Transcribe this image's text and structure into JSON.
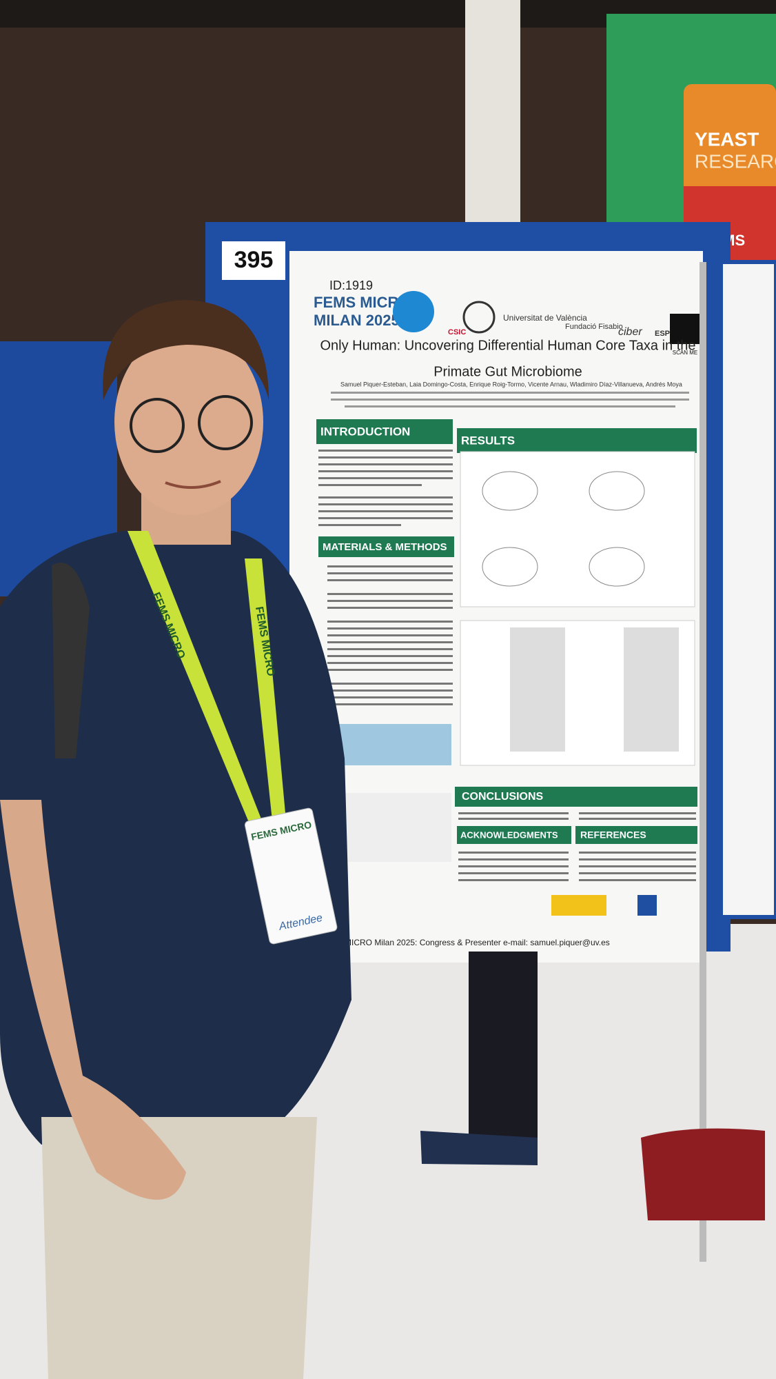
{
  "booth_number": "395",
  "poster": {
    "id": "ID:1919",
    "conference_line1": "FEMS MICRO",
    "conference_line2": "MILAN 2025",
    "logos": [
      "CSIC",
      "Universitat de València",
      "Fundació Fisabio",
      "ciber",
      "ESP"
    ],
    "scan": "SCAN ME",
    "title_line1": "Only Human: Uncovering Differential Human Core Taxa in the",
    "title_line2": "Primate Gut Microbiome",
    "authors": "Samuel Piquer-Esteban, Laia Domingo-Costa, Enrique Roig-Tormo, Vicente Arnau, Wladimiro Díaz-Villanueva, Andrés Moya",
    "sections": [
      "INTRODUCTION",
      "RESULTS",
      "MATERIALS & METHODS",
      "CONCLUSIONS",
      "ACKNOWLEDGMENTS",
      "REFERENCES"
    ],
    "footer": "MICRO Milan 2025: Congress & Presenter e-mail: samuel.piquer@uv.es"
  },
  "banner": {
    "line1": "YEAST",
    "line2": "RESEARCH",
    "brand": "FEMS"
  },
  "lanyard": "FEMS MICRO",
  "badge": {
    "brand": "FEMS MICRO",
    "role": "Attendee"
  }
}
